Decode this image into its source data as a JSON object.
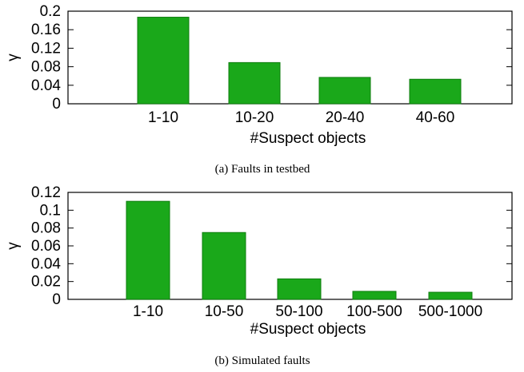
{
  "bar_color": "#1aa81a",
  "bar_edge": "#0f7d0f",
  "chart_data": [
    {
      "type": "bar",
      "categories": [
        "1-10",
        "10-20",
        "20-40",
        "40-60"
      ],
      "values": [
        0.187,
        0.089,
        0.057,
        0.053
      ],
      "yticks": [
        "0",
        "0.04",
        "0.08",
        "0.12",
        "0.16",
        "0.2"
      ],
      "ylim": [
        0,
        0.2
      ],
      "xlabel": "#Suspect objects",
      "ylabel": "γ",
      "caption": "(a) Faults in testbed"
    },
    {
      "type": "bar",
      "categories": [
        "1-10",
        "10-50",
        "50-100",
        "100-500",
        "500-1000"
      ],
      "values": [
        0.11,
        0.075,
        0.023,
        0.009,
        0.008
      ],
      "yticks": [
        "0",
        "0.02",
        "0.04",
        "0.06",
        "0.08",
        "0.1",
        "0.12"
      ],
      "ylim": [
        0,
        0.12
      ],
      "xlabel": "#Suspect objects",
      "ylabel": "γ",
      "caption": "(b) Simulated faults"
    }
  ]
}
